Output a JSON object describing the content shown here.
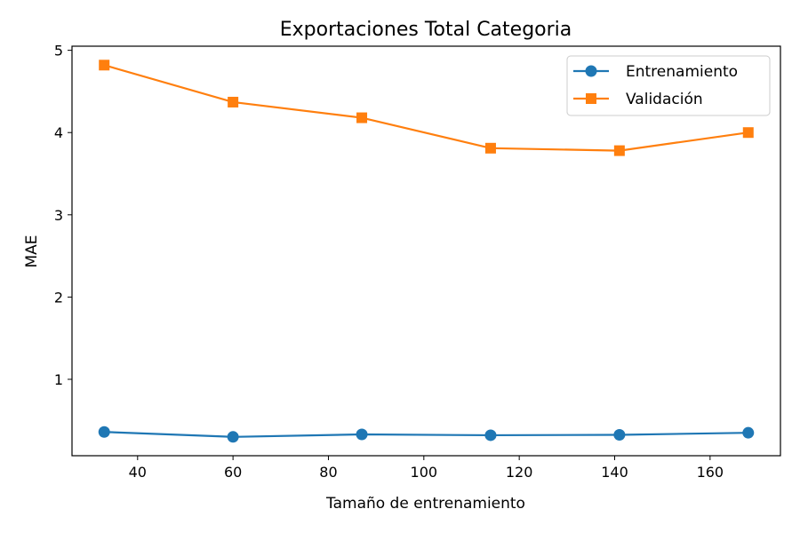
{
  "chart_data": {
    "type": "line",
    "title": "Exportaciones Total Categoria",
    "xlabel": "Tamaño de entrenamiento",
    "ylabel": "MAE",
    "xlim": [
      26.25,
      174.75
    ],
    "ylim": [
      0.071,
      5.05
    ],
    "xticks": [
      40,
      60,
      80,
      100,
      120,
      140,
      160
    ],
    "yticks": [
      1,
      2,
      3,
      4,
      5
    ],
    "grid": false,
    "legend_position": "top-right",
    "x": [
      33,
      60,
      87,
      114,
      141,
      168
    ],
    "series": [
      {
        "name": "Entrenamiento",
        "color": "#1f77b4",
        "marker": "circle",
        "values": [
          0.36,
          0.3,
          0.33,
          0.32,
          0.325,
          0.35
        ]
      },
      {
        "name": "Validación",
        "color": "#ff7f0e",
        "marker": "square",
        "values": [
          4.82,
          4.37,
          4.18,
          3.81,
          3.78,
          4.0
        ]
      }
    ]
  }
}
